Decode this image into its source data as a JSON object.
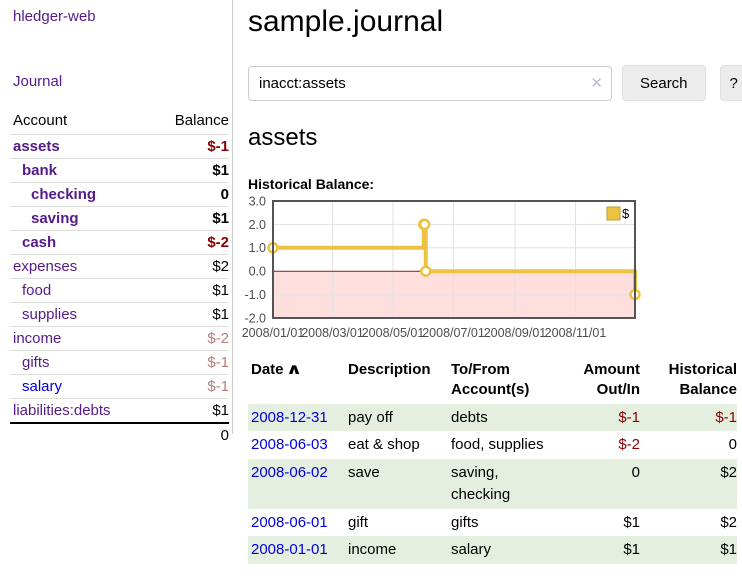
{
  "sidebar": {
    "app_title": "hledger-web",
    "journal_link": "Journal",
    "accounts_table": {
      "account_header": "Account",
      "balance_header": "Balance",
      "rows": [
        {
          "name": "assets",
          "depth": 0,
          "bold": true,
          "balance": "$-1",
          "balance_style": "neg",
          "link_color": "purple"
        },
        {
          "name": "bank",
          "depth": 1,
          "bold": true,
          "balance": "$1",
          "balance_style": "normal",
          "link_color": "purple"
        },
        {
          "name": "checking",
          "depth": 2,
          "bold": true,
          "balance": "0",
          "balance_style": "normal",
          "link_color": "purple"
        },
        {
          "name": "saving",
          "depth": 2,
          "bold": true,
          "balance": "$1",
          "balance_style": "normal",
          "link_color": "purple"
        },
        {
          "name": "cash",
          "depth": 1,
          "bold": true,
          "balance": "$-2",
          "balance_style": "neg",
          "link_color": "purple"
        },
        {
          "name": "expenses",
          "depth": 0,
          "bold": false,
          "balance": "$2",
          "balance_style": "normal",
          "link_color": "purple"
        },
        {
          "name": "food",
          "depth": 1,
          "bold": false,
          "balance": "$1",
          "balance_style": "normal",
          "link_color": "purple"
        },
        {
          "name": "supplies",
          "depth": 1,
          "bold": false,
          "balance": "$1",
          "balance_style": "normal",
          "link_color": "purple"
        },
        {
          "name": "income",
          "depth": 0,
          "bold": false,
          "balance": "$-2",
          "balance_style": "negmuted",
          "link_color": "purple"
        },
        {
          "name": "gifts",
          "depth": 1,
          "bold": false,
          "balance": "$-1",
          "balance_style": "negmuted",
          "link_color": "purple"
        },
        {
          "name": "salary",
          "depth": 1,
          "bold": false,
          "balance": "$-1",
          "balance_style": "negmuted",
          "link_color": "blue"
        },
        {
          "name": "liabilities:debts",
          "depth": 0,
          "bold": false,
          "balance": "$1",
          "balance_style": "normal",
          "link_color": "purple"
        }
      ],
      "total": "0"
    }
  },
  "main": {
    "title": "sample.journal",
    "search": {
      "value": "inacct:assets",
      "clear_icon": "✕",
      "search_button": "Search",
      "help_button": "?"
    },
    "account_heading": "assets",
    "chart_label": "Historical Balance:"
  },
  "chart_data": {
    "type": "line",
    "title": "Historical Balance",
    "step": true,
    "series": [
      {
        "name": "$",
        "points": [
          {
            "x": "2008-01-01",
            "y": 1
          },
          {
            "x": "2008-06-01",
            "y": 2
          },
          {
            "x": "2008-06-02",
            "y": 2
          },
          {
            "x": "2008-06-03",
            "y": 0
          },
          {
            "x": "2008-12-31",
            "y": -1
          }
        ]
      }
    ],
    "xlim": [
      "2008-01-01",
      "2008-12-31"
    ],
    "ylim": [
      -2,
      3
    ],
    "y_ticks": [
      3.0,
      2.0,
      1.0,
      0.0,
      -1.0,
      -2.0
    ],
    "x_ticks": [
      {
        "date": "2008-01-01",
        "label": "2008/01/01"
      },
      {
        "date": "2008-03-01",
        "label": "2008/03/01"
      },
      {
        "date": "2008-05-01",
        "label": "2008/05/01"
      },
      {
        "date": "2008-07-01",
        "label": "2008/07/01"
      },
      {
        "date": "2008-09-01",
        "label": "2008/09/01"
      },
      {
        "date": "2008-11-01",
        "label": "2008/11/01"
      }
    ],
    "legend": {
      "label": "$",
      "position": "top-right"
    },
    "grid": true,
    "colors": {
      "line": "#edc240",
      "marker_fill": "#ffffff",
      "negative_region": "#ffdede",
      "zero_line": "#8b1a1a",
      "grid": "#e2e2e2",
      "border": "#545454",
      "axis_text": "#4d4d4d",
      "legend_box_border": "#bb9f2e"
    }
  },
  "register": {
    "columns": [
      {
        "label": "Date",
        "align": "left",
        "sorted": true
      },
      {
        "label": "Description",
        "align": "left"
      },
      {
        "label": "To/From Account(s)",
        "align": "left"
      },
      {
        "label": "Amount Out/In",
        "align": "right"
      },
      {
        "label": "Historical Balance",
        "align": "right"
      }
    ],
    "sort_indicator": "∧",
    "rows": [
      {
        "date": "2008-12-31",
        "description": "pay off",
        "accounts": "debts",
        "amount": "$-1",
        "amount_neg": true,
        "balance": "$-1",
        "balance_neg": true
      },
      {
        "date": "2008-06-03",
        "description": "eat & shop",
        "accounts": "food, supplies",
        "amount": "$-2",
        "amount_neg": true,
        "balance": "0",
        "balance_neg": false
      },
      {
        "date": "2008-06-02",
        "description": "save",
        "accounts": "saving,\nchecking",
        "amount": "0",
        "amount_neg": false,
        "balance": "$2",
        "balance_neg": false
      },
      {
        "date": "2008-06-01",
        "description": "gift",
        "accounts": "gifts",
        "amount": "$1",
        "amount_neg": false,
        "balance": "$2",
        "balance_neg": false
      },
      {
        "date": "2008-01-01",
        "description": "income",
        "accounts": "salary",
        "amount": "$1",
        "amount_neg": false,
        "balance": "$1",
        "balance_neg": false
      }
    ]
  }
}
